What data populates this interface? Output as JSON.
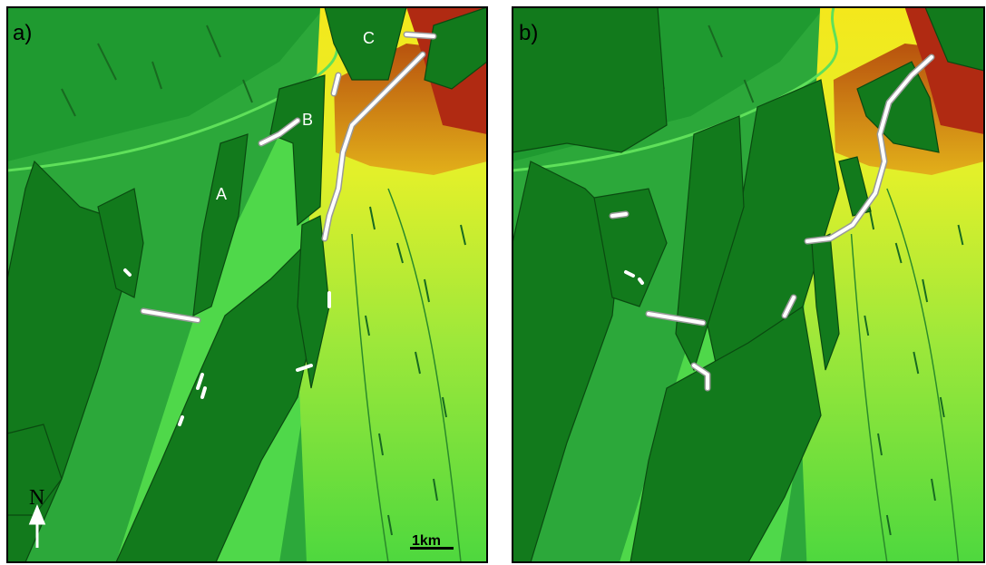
{
  "panels": [
    {
      "label": "a)",
      "sites": [
        {
          "label": "A"
        },
        {
          "label": "B"
        },
        {
          "label": "C"
        }
      ],
      "north": "N",
      "scale": "1km"
    },
    {
      "label": "b)"
    }
  ]
}
